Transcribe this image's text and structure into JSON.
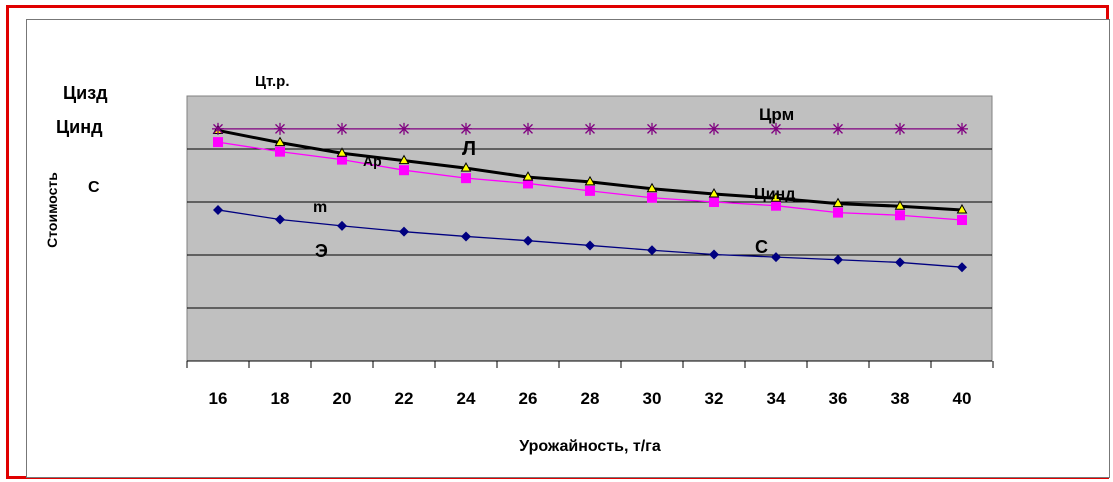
{
  "chart_data": {
    "type": "line",
    "xlabel": "Урожайность, т/га",
    "ylabel": "Стоимость",
    "categories": [
      16,
      18,
      20,
      22,
      24,
      26,
      28,
      30,
      32,
      34,
      36,
      38,
      40
    ],
    "grid": true,
    "plot_background": "#c0c0c0",
    "series": [
      {
        "name": "Цинд",
        "color": "#000000",
        "marker": "triangle",
        "values": [
          4.35,
          4.12,
          3.92,
          3.78,
          3.64,
          3.47,
          3.38,
          3.25,
          3.15,
          3.07,
          2.97,
          2.92,
          2.85
        ]
      },
      {
        "name": "Цизд",
        "color": "#ff00ff",
        "marker": "square",
        "values": [
          4.13,
          3.95,
          3.8,
          3.6,
          3.45,
          3.35,
          3.21,
          3.08,
          3.0,
          2.93,
          2.8,
          2.75,
          2.66
        ]
      },
      {
        "name": "Црм",
        "color": "#800080",
        "marker": "asterisk",
        "values": [
          4.38,
          4.38,
          4.38,
          4.38,
          4.38,
          4.38,
          4.38,
          4.38,
          4.38,
          4.38,
          4.38,
          4.38,
          4.38
        ]
      },
      {
        "name": "С",
        "color": "#000080",
        "marker": "diamond",
        "values": [
          2.85,
          2.67,
          2.55,
          2.44,
          2.35,
          2.27,
          2.18,
          2.09,
          2.01,
          1.96,
          1.91,
          1.86,
          1.77
        ]
      }
    ],
    "annotations": [
      "Цт.р.",
      "Цизд",
      "Цинд",
      "С",
      "Црм",
      "Ар",
      "Л",
      "m",
      "Цинд",
      "Э",
      "С"
    ],
    "colors": {
      "frame_border": "#e00000",
      "plot_background": "#c0c0c0",
      "gridline": "#000000"
    }
  }
}
